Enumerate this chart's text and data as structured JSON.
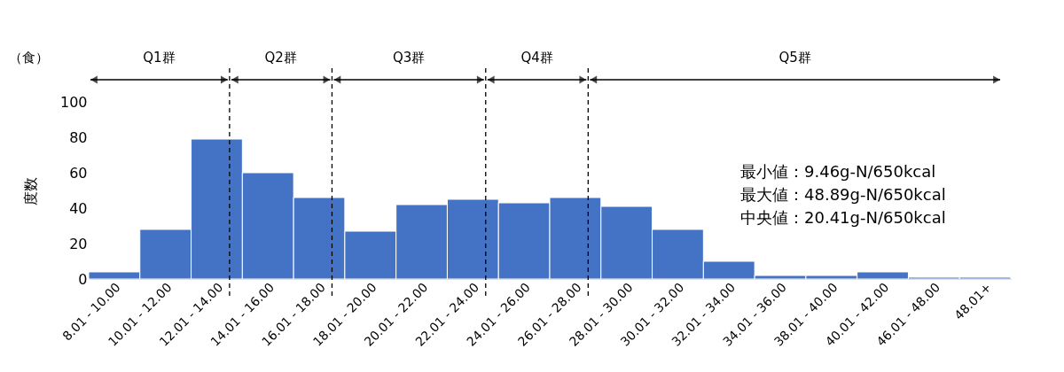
{
  "chart_data": {
    "type": "bar",
    "ylabel": "度数",
    "color": "#4472c4",
    "categories": [
      "8.01 - 10.00",
      "10.01 - 12.00",
      "12.01 - 14.00",
      "14.01 - 16.00",
      "16.01 - 18.00",
      "18.01 - 20.00",
      "20.01 - 22.00",
      "22.01 - 24.00",
      "24.01 - 26.00",
      "26.01 - 28.00",
      "28.01 - 30.00",
      "30.01 - 32.00",
      "32.01 - 34.00",
      "34.01 - 36.00",
      "38.01 - 40.00",
      "40.01 - 42.00",
      "46.01 - 48.00",
      "48.01+"
    ],
    "values": [
      4,
      28,
      79,
      60,
      46,
      27,
      42,
      45,
      43,
      46,
      41,
      28,
      10,
      2,
      2,
      4,
      1,
      1
    ],
    "ylim": [
      0,
      100
    ],
    "yticks": [
      0,
      20,
      40,
      60,
      80,
      100
    ],
    "grid": false,
    "ref_lines": [
      {
        "axis": "x",
        "value": "12.01 - 14.00",
        "line_style": "dashed"
      },
      {
        "axis": "x",
        "value": "16.01 - 18.00",
        "line_style": "dashed"
      },
      {
        "axis": "x",
        "value": "22.01 - 24.00",
        "line_style": "dashed"
      },
      {
        "axis": "x",
        "value": "26.01 - 28.00",
        "line_style": "dashed"
      }
    ],
    "annotations": [
      "（食）",
      "Q1群",
      "Q2群",
      "Q3群",
      "Q4群",
      "Q5群",
      "最小値：9.46g-N/650kcal",
      "最大値：48.89g-N/650kcal",
      "中央値：20.41g-N/650kcal"
    ]
  }
}
